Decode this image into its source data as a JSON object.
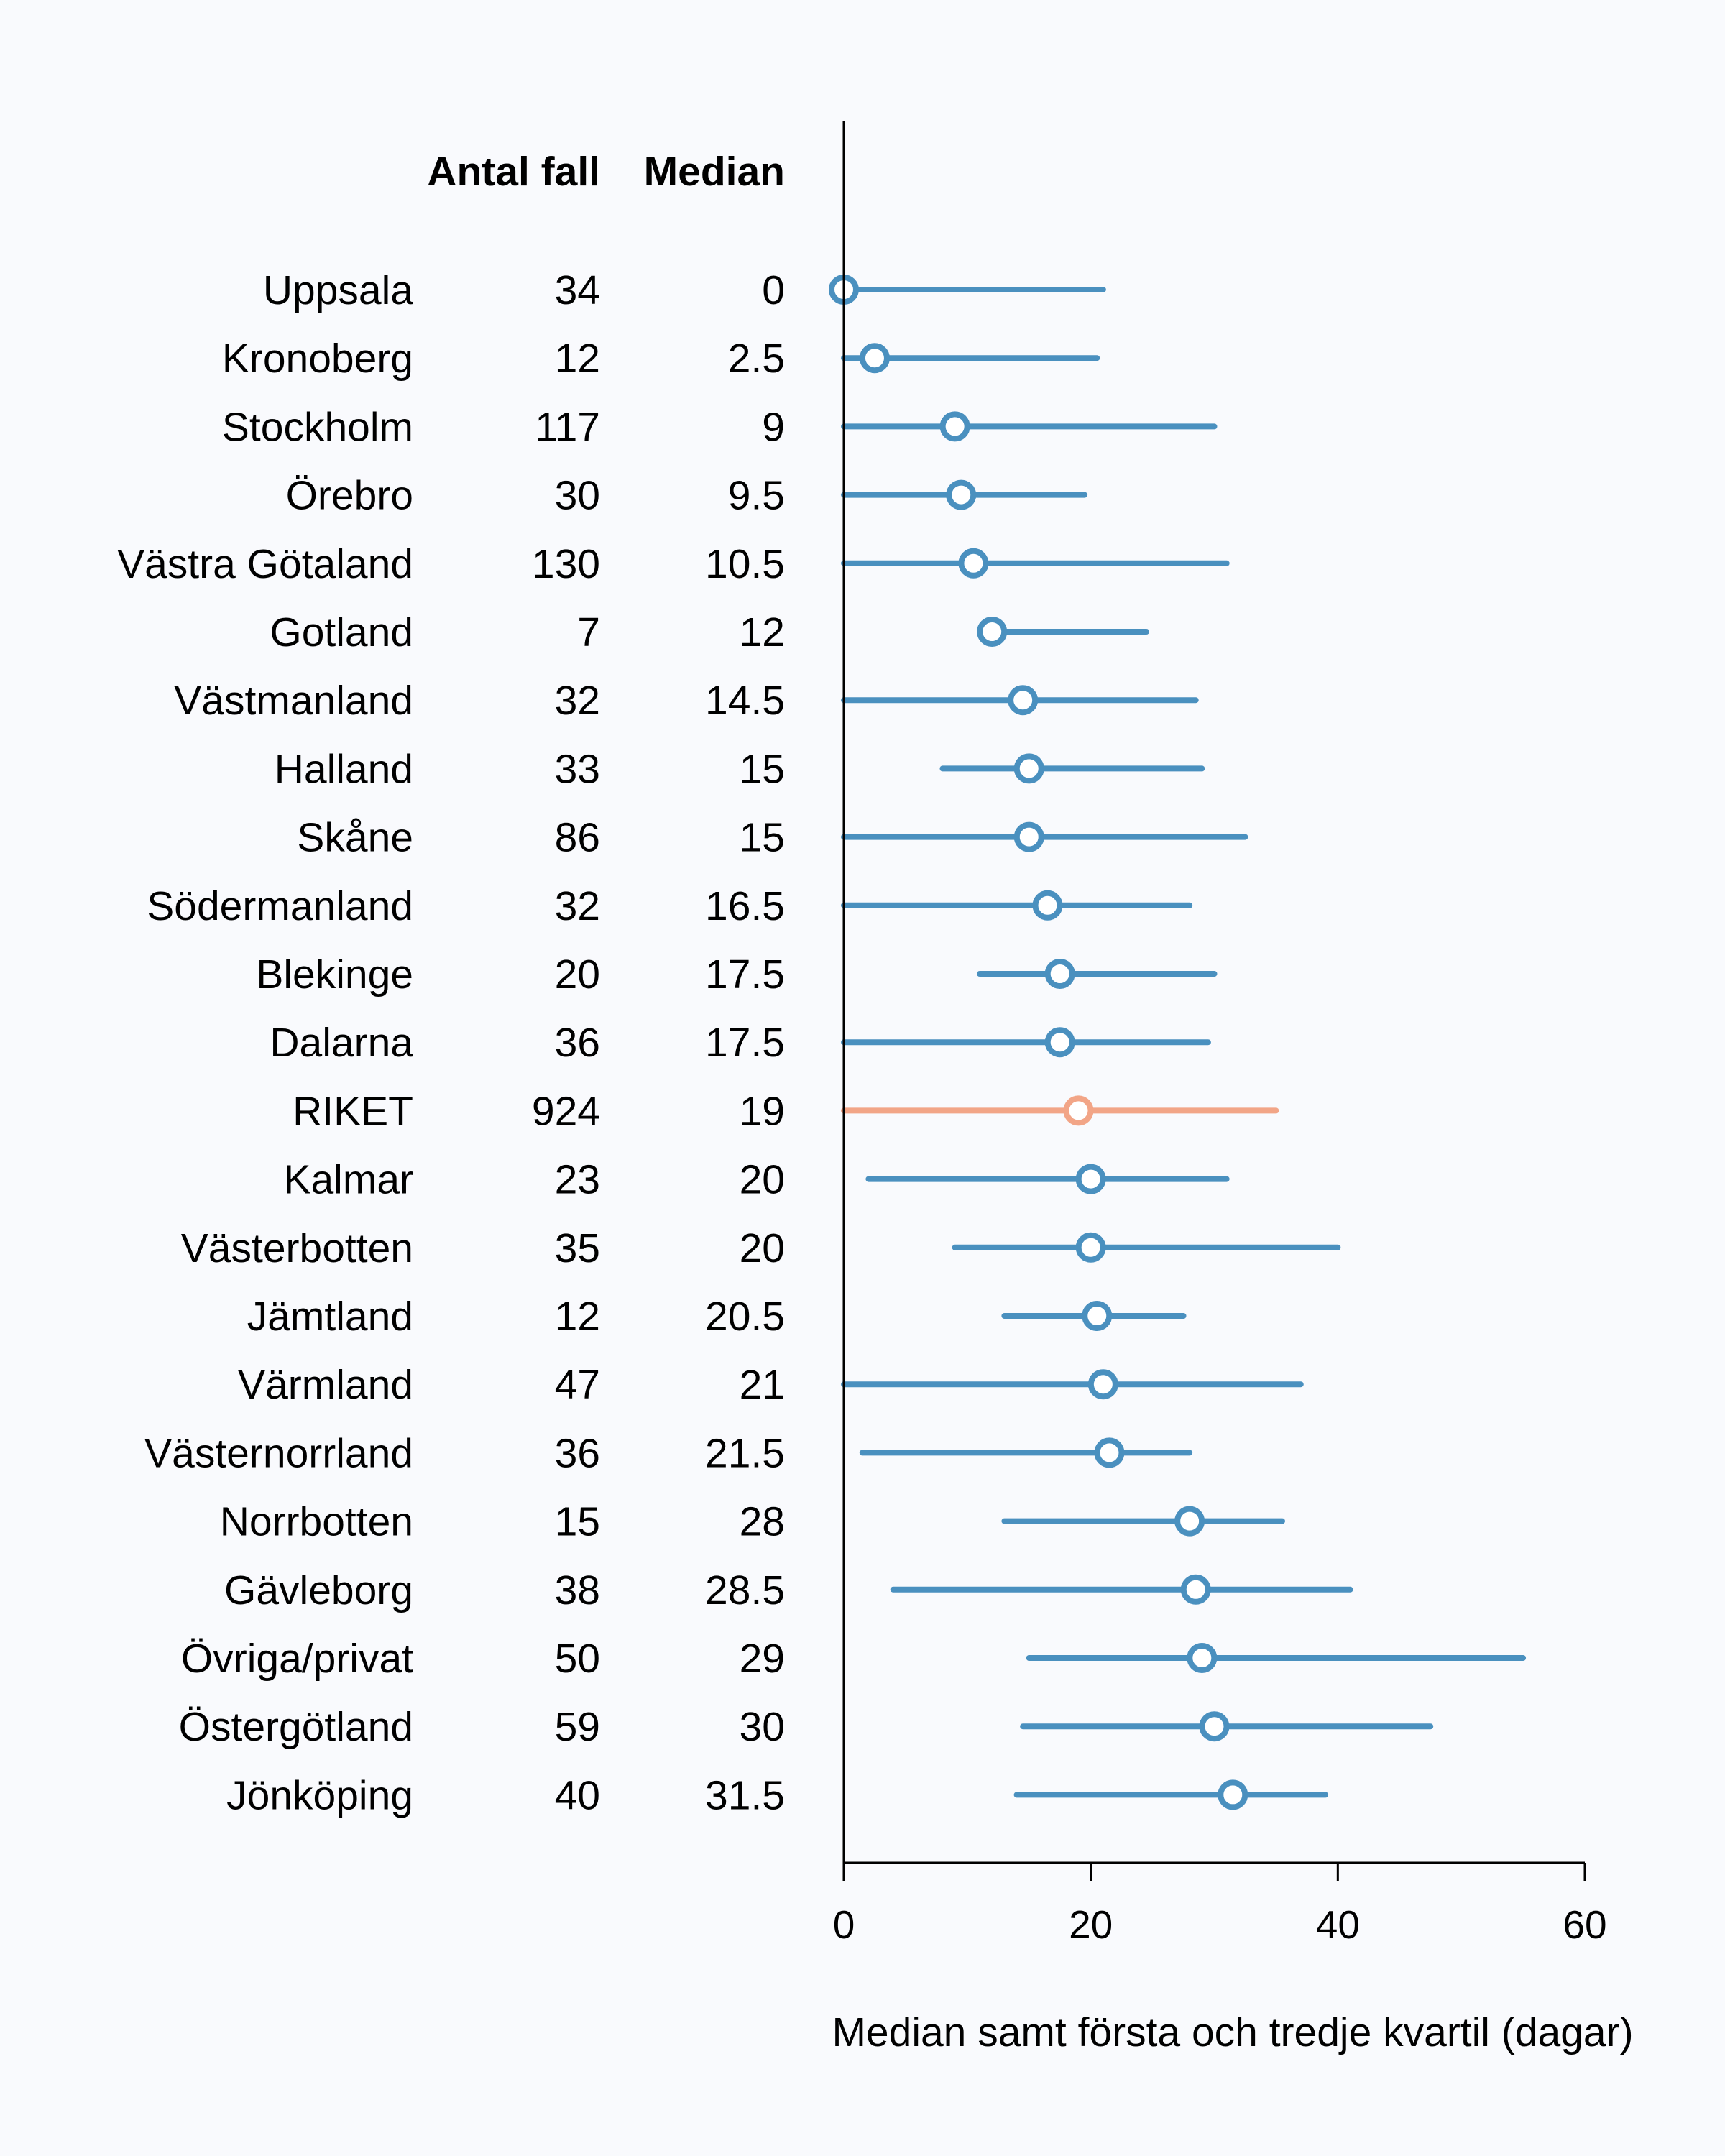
{
  "chart_data": {
    "type": "dot-range",
    "xlabel": "Median samt första och tredje kvartil (dagar)",
    "xlim": [
      0,
      60
    ],
    "xticks": [
      0,
      20,
      40,
      60
    ],
    "grid": false,
    "columns": {
      "count_header": "Antal fall",
      "median_header": "Median"
    },
    "colors": {
      "region": "#4a90bf",
      "national": "#f2a587"
    },
    "rows": [
      {
        "name": "Uppsala",
        "count": 34,
        "median_label": "0",
        "median": 0,
        "q1": 0,
        "q3": 21,
        "national": false
      },
      {
        "name": "Kronoberg",
        "count": 12,
        "median_label": "2.5",
        "median": 2.5,
        "q1": 0,
        "q3": 20.5,
        "national": false
      },
      {
        "name": "Stockholm",
        "count": 117,
        "median_label": "9",
        "median": 9,
        "q1": 0,
        "q3": 30,
        "national": false
      },
      {
        "name": "Örebro",
        "count": 30,
        "median_label": "9.5",
        "median": 9.5,
        "q1": 0,
        "q3": 19.5,
        "national": false
      },
      {
        "name": "Västra Götaland",
        "count": 130,
        "median_label": "10.5",
        "median": 10.5,
        "q1": 0,
        "q3": 31,
        "national": false
      },
      {
        "name": "Gotland",
        "count": 7,
        "median_label": "12",
        "median": 12,
        "q1": 11,
        "q3": 24.5,
        "national": false
      },
      {
        "name": "Västmanland",
        "count": 32,
        "median_label": "14.5",
        "median": 14.5,
        "q1": 0,
        "q3": 28.5,
        "national": false
      },
      {
        "name": "Halland",
        "count": 33,
        "median_label": "15",
        "median": 15,
        "q1": 8,
        "q3": 29,
        "national": false
      },
      {
        "name": "Skåne",
        "count": 86,
        "median_label": "15",
        "median": 15,
        "q1": 0,
        "q3": 32.5,
        "national": false
      },
      {
        "name": "Södermanland",
        "count": 32,
        "median_label": "16.5",
        "median": 16.5,
        "q1": 0,
        "q3": 28,
        "national": false
      },
      {
        "name": "Blekinge",
        "count": 20,
        "median_label": "17.5",
        "median": 17.5,
        "q1": 11,
        "q3": 30,
        "national": false
      },
      {
        "name": "Dalarna",
        "count": 36,
        "median_label": "17.5",
        "median": 17.5,
        "q1": 0,
        "q3": 29.5,
        "national": false
      },
      {
        "name": "RIKET",
        "count": 924,
        "median_label": "19",
        "median": 19,
        "q1": 0,
        "q3": 35,
        "national": true
      },
      {
        "name": "Kalmar",
        "count": 23,
        "median_label": "20",
        "median": 20,
        "q1": 2,
        "q3": 31,
        "national": false
      },
      {
        "name": "Västerbotten",
        "count": 35,
        "median_label": "20",
        "median": 20,
        "q1": 9,
        "q3": 40,
        "national": false
      },
      {
        "name": "Jämtland",
        "count": 12,
        "median_label": "20.5",
        "median": 20.5,
        "q1": 13,
        "q3": 27.5,
        "national": false
      },
      {
        "name": "Värmland",
        "count": 47,
        "median_label": "21",
        "median": 21,
        "q1": 0,
        "q3": 37,
        "national": false
      },
      {
        "name": "Västernorrland",
        "count": 36,
        "median_label": "21.5",
        "median": 21.5,
        "q1": 1.5,
        "q3": 28,
        "national": false
      },
      {
        "name": "Norrbotten",
        "count": 15,
        "median_label": "28",
        "median": 28,
        "q1": 13,
        "q3": 35.5,
        "national": false
      },
      {
        "name": "Gävleborg",
        "count": 38,
        "median_label": "28.5",
        "median": 28.5,
        "q1": 4,
        "q3": 41,
        "national": false
      },
      {
        "name": "Övriga/privat",
        "count": 50,
        "median_label": "29",
        "median": 29,
        "q1": 15,
        "q3": 55,
        "national": false
      },
      {
        "name": "Östergötland",
        "count": 59,
        "median_label": "30",
        "median": 30,
        "q1": 14.5,
        "q3": 47.5,
        "national": false
      },
      {
        "name": "Jönköping",
        "count": 40,
        "median_label": "31.5",
        "median": 31.5,
        "q1": 14,
        "q3": 39,
        "national": false
      }
    ]
  }
}
